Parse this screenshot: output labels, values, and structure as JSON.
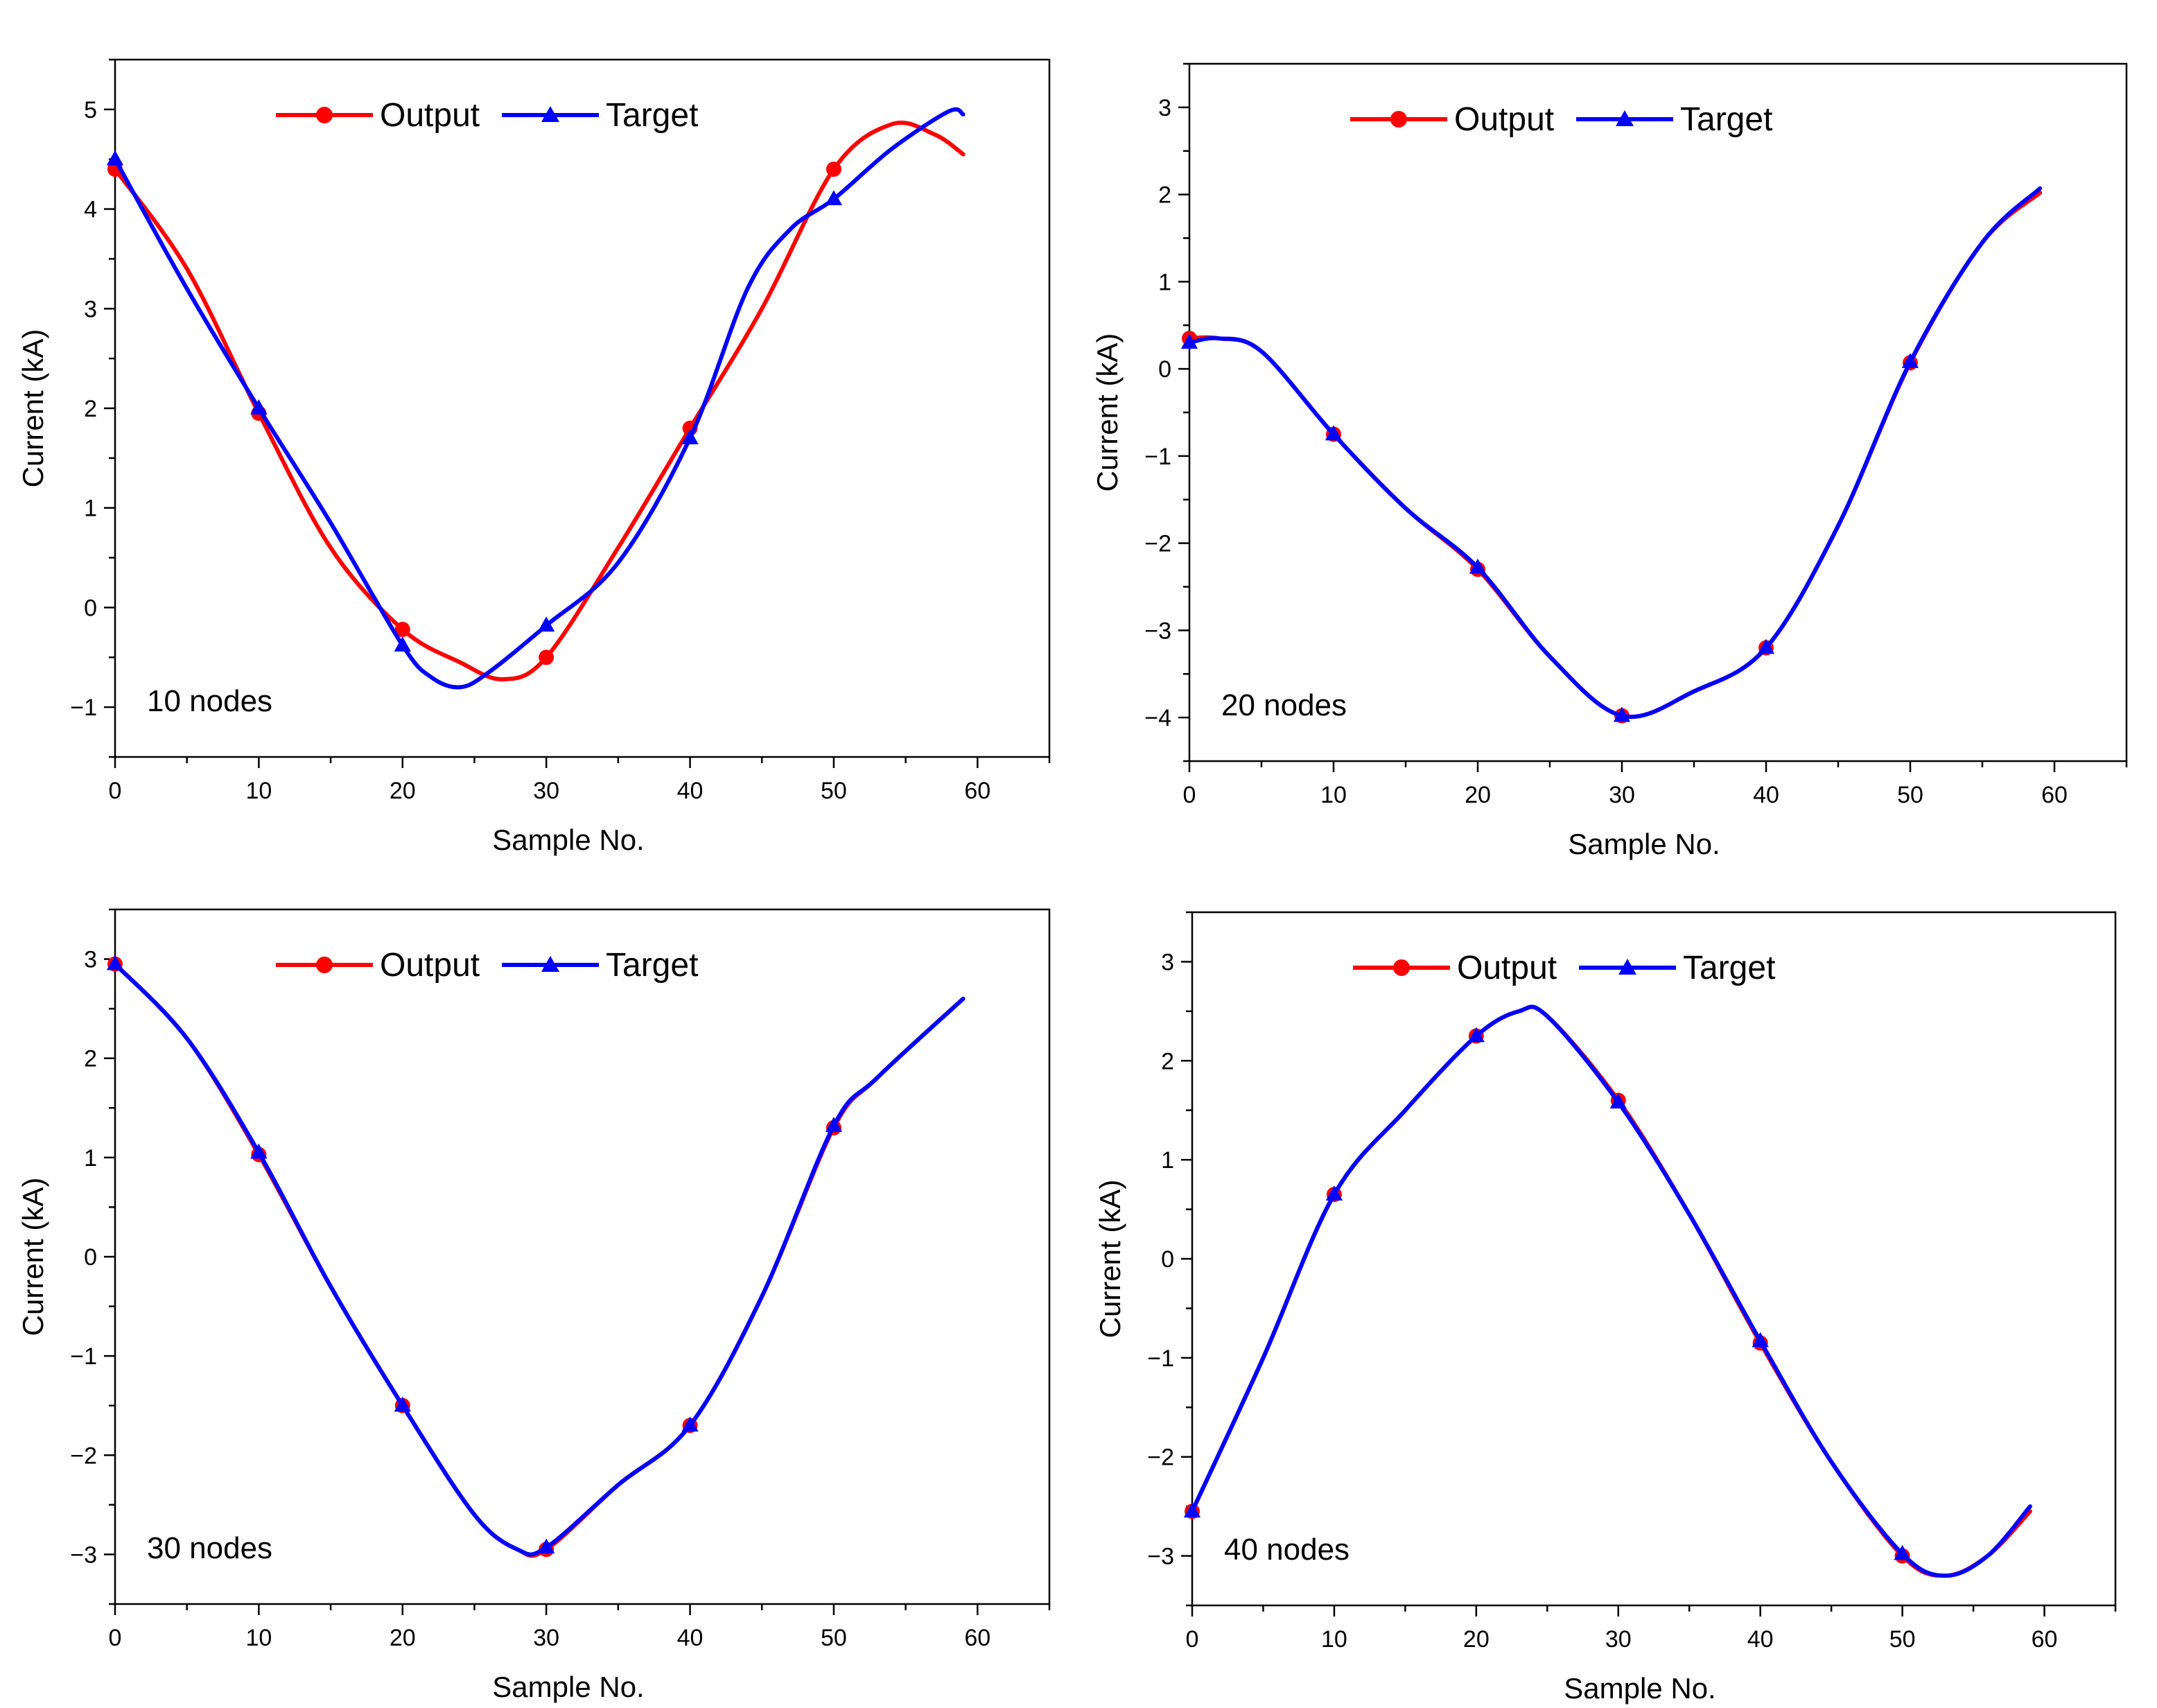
{
  "figure": {
    "panel_count": 4
  },
  "colors": {
    "output": "#ff0000",
    "target": "#0000ff",
    "axis": "#000000"
  },
  "chart_data": [
    {
      "type": "line",
      "annotation": "10 nodes",
      "xlabel": "Sample No.",
      "ylabel": "Current (kA)",
      "xlim": [
        0,
        65
      ],
      "ylim": [
        -1.5,
        5.5
      ],
      "xticks": [
        0,
        10,
        20,
        30,
        40,
        50,
        60
      ],
      "yticks": [
        -1,
        0,
        1,
        2,
        3,
        4,
        5
      ],
      "legend": {
        "position": "top-center",
        "entries": [
          "Output",
          "Target"
        ]
      },
      "series": [
        {
          "name": "Output",
          "marker": "circle",
          "x": [
            0,
            5,
            10,
            15,
            20,
            24,
            27,
            30,
            35,
            40,
            45,
            50,
            54,
            57,
            59
          ],
          "y": [
            4.4,
            3.4,
            1.95,
            0.6,
            -0.22,
            -0.55,
            -0.72,
            -0.5,
            0.6,
            1.8,
            3.0,
            4.4,
            4.85,
            4.75,
            4.55
          ],
          "marker_x": [
            0,
            10,
            20,
            30,
            40,
            50
          ]
        },
        {
          "name": "Target",
          "marker": "triangle",
          "x": [
            0,
            5,
            10,
            15,
            20,
            22,
            24,
            26,
            30,
            35,
            40,
            44,
            47,
            50,
            54,
            58,
            59
          ],
          "y": [
            4.5,
            3.2,
            2.0,
            0.85,
            -0.38,
            -0.7,
            -0.8,
            -0.65,
            -0.18,
            0.45,
            1.7,
            3.2,
            3.8,
            4.1,
            4.6,
            4.98,
            4.95
          ],
          "marker_x": [
            0,
            10,
            20,
            30,
            40,
            50
          ]
        }
      ]
    },
    {
      "type": "line",
      "annotation": "20 nodes",
      "xlabel": "Sample No.",
      "ylabel": "Current (kA)",
      "xlim": [
        0,
        65
      ],
      "ylim": [
        -4.5,
        3.5
      ],
      "xticks": [
        0,
        10,
        20,
        30,
        40,
        50,
        60
      ],
      "yticks": [
        -4,
        -3,
        -2,
        -1,
        0,
        1,
        2,
        3
      ],
      "legend": {
        "position": "top-center",
        "entries": [
          "Output",
          "Target"
        ]
      },
      "series": [
        {
          "name": "Output",
          "marker": "circle",
          "x": [
            0,
            2,
            5,
            10,
            15,
            20,
            25,
            30,
            35,
            40,
            45,
            50,
            55,
            59
          ],
          "y": [
            0.35,
            0.35,
            0.2,
            -0.75,
            -1.6,
            -2.3,
            -3.3,
            -3.98,
            -3.7,
            -3.2,
            -1.8,
            0.07,
            1.45,
            2.02
          ],
          "marker_x": [
            0,
            10,
            20,
            30,
            40,
            50
          ]
        },
        {
          "name": "Target",
          "marker": "triangle",
          "x": [
            0,
            2,
            5,
            10,
            15,
            20,
            25,
            30,
            35,
            40,
            45,
            50,
            55,
            59
          ],
          "y": [
            0.3,
            0.35,
            0.2,
            -0.75,
            -1.6,
            -2.28,
            -3.3,
            -3.98,
            -3.7,
            -3.2,
            -1.8,
            0.08,
            1.45,
            2.07
          ],
          "marker_x": [
            0,
            10,
            20,
            30,
            40,
            50
          ]
        }
      ]
    },
    {
      "type": "line",
      "annotation": "30 nodes",
      "xlabel": "Sample No.",
      "ylabel": "Current (kA)",
      "xlim": [
        0,
        65
      ],
      "ylim": [
        -3.5,
        3.5
      ],
      "xticks": [
        0,
        10,
        20,
        30,
        40,
        50,
        60
      ],
      "yticks": [
        -3,
        -2,
        -1,
        0,
        1,
        2,
        3
      ],
      "legend": {
        "position": "top-center",
        "entries": [
          "Output",
          "Target"
        ]
      },
      "series": [
        {
          "name": "Output",
          "marker": "circle",
          "x": [
            0,
            5,
            10,
            15,
            20,
            25,
            28,
            30,
            35,
            40,
            45,
            50,
            53,
            59
          ],
          "y": [
            2.95,
            2.2,
            1.03,
            -0.3,
            -1.5,
            -2.6,
            -2.95,
            -2.95,
            -2.3,
            -1.7,
            -0.4,
            1.3,
            1.8,
            2.6
          ],
          "marker_x": [
            0,
            10,
            20,
            30,
            40,
            50
          ]
        },
        {
          "name": "Target",
          "marker": "triangle",
          "x": [
            0,
            5,
            10,
            15,
            20,
            25,
            28,
            30,
            35,
            40,
            45,
            50,
            53,
            59
          ],
          "y": [
            2.95,
            2.2,
            1.05,
            -0.3,
            -1.5,
            -2.6,
            -2.95,
            -2.93,
            -2.3,
            -1.7,
            -0.4,
            1.32,
            1.8,
            2.6
          ],
          "marker_x": [
            0,
            10,
            20,
            30,
            40,
            50
          ]
        }
      ]
    },
    {
      "type": "line",
      "annotation": "40 nodes",
      "xlabel": "Sample No.",
      "ylabel": "Current (kA)",
      "xlim": [
        0,
        65
      ],
      "ylim": [
        -3.5,
        3.5
      ],
      "xticks": [
        0,
        10,
        20,
        30,
        40,
        50,
        60
      ],
      "yticks": [
        -3,
        -2,
        -1,
        0,
        1,
        2,
        3
      ],
      "legend": {
        "position": "top-center",
        "entries": [
          "Output",
          "Target"
        ]
      },
      "series": [
        {
          "name": "Output",
          "marker": "circle",
          "x": [
            0,
            5,
            10,
            15,
            20,
            23,
            25,
            30,
            35,
            40,
            45,
            50,
            53,
            56,
            59
          ],
          "y": [
            -2.55,
            -1.0,
            0.65,
            1.5,
            2.25,
            2.5,
            2.45,
            1.6,
            0.45,
            -0.85,
            -2.05,
            -3.0,
            -3.2,
            -3.0,
            -2.55
          ],
          "marker_x": [
            0,
            10,
            20,
            30,
            40,
            50
          ]
        },
        {
          "name": "Target",
          "marker": "triangle",
          "x": [
            0,
            5,
            10,
            15,
            20,
            23,
            25,
            30,
            35,
            40,
            45,
            50,
            53,
            56,
            59
          ],
          "y": [
            -2.55,
            -1.0,
            0.65,
            1.5,
            2.25,
            2.5,
            2.45,
            1.58,
            0.45,
            -0.83,
            -2.05,
            -2.98,
            -3.2,
            -3.0,
            -2.5
          ],
          "marker_x": [
            0,
            10,
            20,
            30,
            40,
            50
          ]
        }
      ]
    }
  ]
}
